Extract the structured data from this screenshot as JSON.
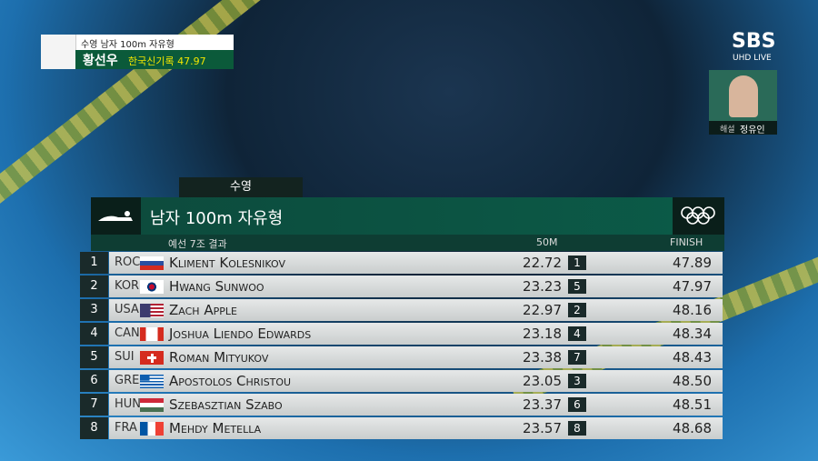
{
  "overlay": {
    "event": "수영 남자 100m 자유형",
    "athlete": "황선우",
    "record": "한국신기록 47.97"
  },
  "broadcaster": {
    "logo": "SBS",
    "tag": "UHD LIVE"
  },
  "commentator": {
    "role": "해설",
    "name": "정유인"
  },
  "board": {
    "sport": "수영",
    "title": "남자 100m 자유형",
    "subtitle": "예선 7조 결과",
    "split_header": "50M",
    "finish_header": "FINISH",
    "rows": [
      {
        "rank": "1",
        "country": "ROC",
        "name": "Kliment Kolesnikov",
        "split": "22.72",
        "split_rank": "1",
        "finish": "47.89"
      },
      {
        "rank": "2",
        "country": "KOR",
        "name": "Hwang Sunwoo",
        "split": "23.23",
        "split_rank": "5",
        "finish": "47.97"
      },
      {
        "rank": "3",
        "country": "USA",
        "name": "Zach Apple",
        "split": "22.97",
        "split_rank": "2",
        "finish": "48.16"
      },
      {
        "rank": "4",
        "country": "CAN",
        "name": "Joshua Liendo Edwards",
        "split": "23.18",
        "split_rank": "4",
        "finish": "48.34"
      },
      {
        "rank": "5",
        "country": "SUI",
        "name": "Roman Mityukov",
        "split": "23.38",
        "split_rank": "7",
        "finish": "48.43"
      },
      {
        "rank": "6",
        "country": "GRE",
        "name": "Apostolos Christou",
        "split": "23.05",
        "split_rank": "3",
        "finish": "48.50"
      },
      {
        "rank": "7",
        "country": "HUN",
        "name": "Szebasztian Szabo",
        "split": "23.37",
        "split_rank": "6",
        "finish": "48.51"
      },
      {
        "rank": "8",
        "country": "FRA",
        "name": "Mehdy Metella",
        "split": "23.57",
        "split_rank": "8",
        "finish": "48.68"
      }
    ]
  }
}
